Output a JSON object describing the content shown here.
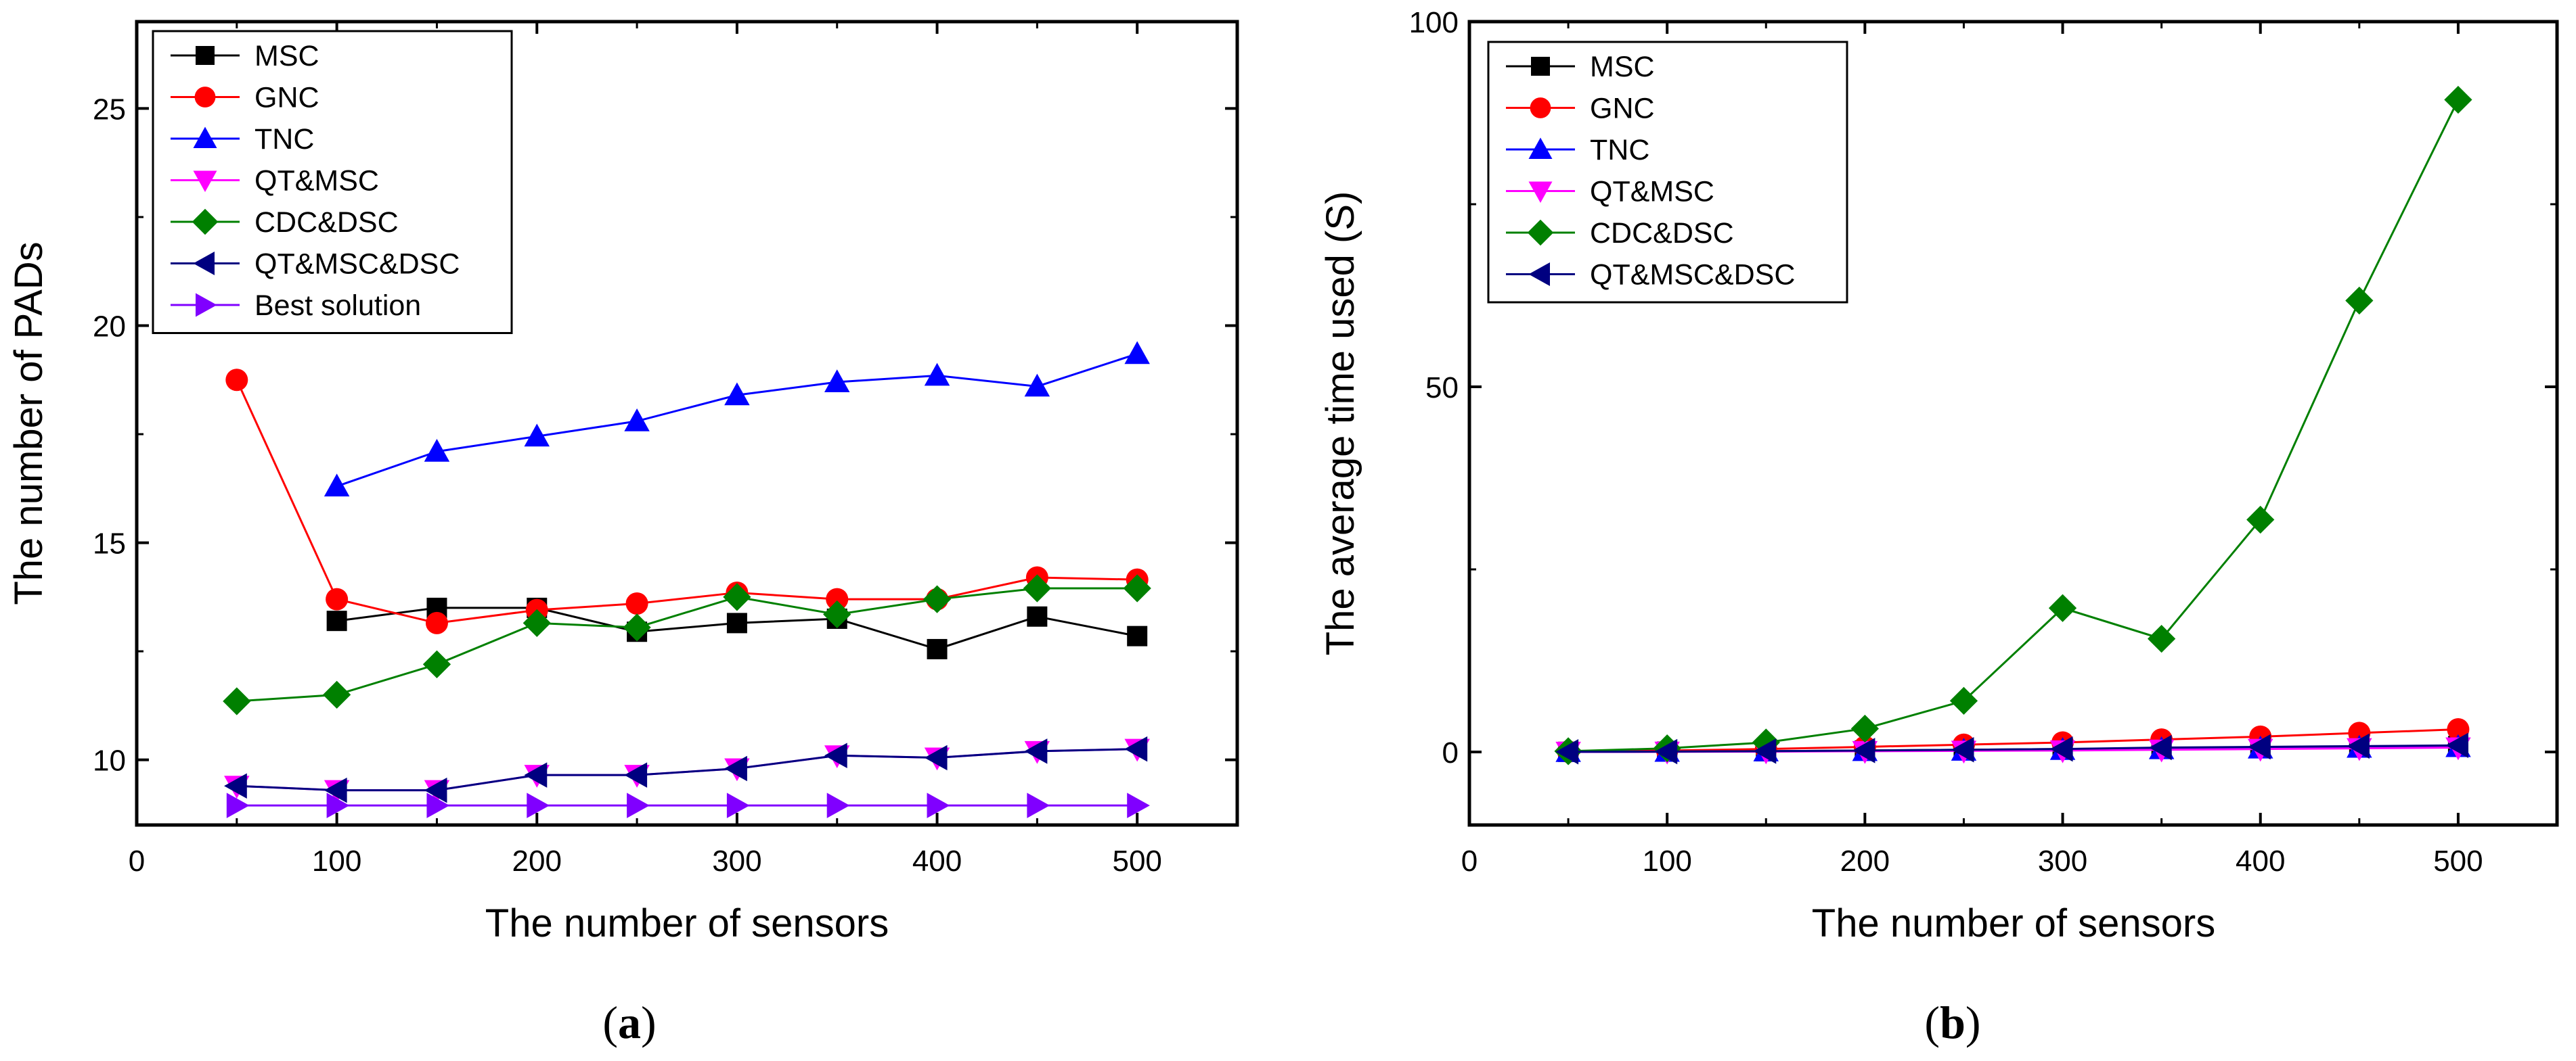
{
  "chart_data": [
    {
      "panel": "a",
      "caption_letter": "a",
      "type": "line",
      "xlabel": "The number of sensors",
      "ylabel": "The number of PADs",
      "xlim": [
        0,
        550
      ],
      "ylim": [
        8.5,
        27
      ],
      "xticks": [
        0,
        100,
        200,
        300,
        400,
        500
      ],
      "yticks": [
        10,
        15,
        20,
        25
      ],
      "grid": false,
      "legend_position": "top-left",
      "series": [
        {
          "name": "MSC",
          "color": "#000000",
          "marker": "square",
          "x": [
            100,
            150,
            200,
            250,
            300,
            350,
            400,
            450,
            500
          ],
          "y": [
            13.2,
            13.5,
            13.5,
            12.95,
            13.15,
            13.25,
            12.55,
            13.3,
            12.85
          ]
        },
        {
          "name": "GNC",
          "color": "#ff0000",
          "marker": "circle",
          "x": [
            50,
            100,
            150,
            200,
            250,
            300,
            350,
            400,
            450,
            500
          ],
          "y": [
            18.75,
            13.7,
            13.15,
            13.45,
            13.6,
            13.85,
            13.7,
            13.7,
            14.2,
            14.15
          ]
        },
        {
          "name": "TNC",
          "color": "#0000ff",
          "marker": "triangle-up",
          "x": [
            100,
            150,
            200,
            250,
            300,
            350,
            400,
            450,
            500
          ],
          "y": [
            16.3,
            17.1,
            17.45,
            17.8,
            18.4,
            18.7,
            18.85,
            18.6,
            19.35
          ]
        },
        {
          "name": "QT&MSC",
          "color": "#ff00ff",
          "marker": "triangle-down",
          "x": [
            50,
            100,
            150,
            200,
            250,
            300,
            350,
            400,
            450,
            500
          ],
          "y": [
            9.4,
            9.3,
            9.3,
            9.65,
            9.65,
            9.8,
            10.1,
            10.05,
            10.2,
            10.25
          ]
        },
        {
          "name": "CDC&DSC",
          "color": "#008000",
          "marker": "diamond",
          "x": [
            50,
            100,
            150,
            200,
            250,
            300,
            350,
            400,
            450,
            500
          ],
          "y": [
            11.35,
            11.5,
            12.2,
            13.15,
            13.05,
            13.75,
            13.35,
            13.7,
            13.95,
            13.95
          ]
        },
        {
          "name": "QT&MSC&DSC",
          "color": "#000080",
          "marker": "triangle-left",
          "x": [
            50,
            100,
            150,
            200,
            250,
            300,
            350,
            400,
            450,
            500
          ],
          "y": [
            9.4,
            9.3,
            9.3,
            9.65,
            9.65,
            9.8,
            10.1,
            10.05,
            10.2,
            10.25
          ]
        },
        {
          "name": "Best solution",
          "color": "#8000ff",
          "marker": "triangle-right",
          "x": [
            50,
            100,
            150,
            200,
            250,
            300,
            350,
            400,
            450,
            500
          ],
          "y": [
            8.95,
            8.95,
            8.95,
            8.95,
            8.95,
            8.95,
            8.95,
            8.95,
            8.95,
            8.95
          ]
        }
      ]
    },
    {
      "panel": "b",
      "caption_letter": "b",
      "type": "line",
      "xlabel": "The number of sensors",
      "ylabel": "The average time used (S)",
      "xlim": [
        0,
        550
      ],
      "ylim": [
        -10,
        100
      ],
      "xticks": [
        0,
        100,
        200,
        300,
        400,
        500
      ],
      "yticks": [
        0,
        50,
        100
      ],
      "grid": false,
      "legend_position": "top-left",
      "series": [
        {
          "name": "MSC",
          "color": "#000000",
          "marker": "square",
          "x": [
            50,
            100,
            150,
            200,
            250,
            300,
            350,
            400,
            450,
            500
          ],
          "y": [
            0.02,
            0.05,
            0.1,
            0.2,
            0.3,
            0.4,
            0.5,
            0.6,
            0.7,
            0.8
          ]
        },
        {
          "name": "GNC",
          "color": "#ff0000",
          "marker": "circle",
          "x": [
            50,
            100,
            150,
            200,
            250,
            300,
            350,
            400,
            450,
            500
          ],
          "y": [
            0.05,
            0.2,
            0.4,
            0.7,
            1.0,
            1.3,
            1.7,
            2.1,
            2.6,
            3.1
          ]
        },
        {
          "name": "TNC",
          "color": "#0000ff",
          "marker": "triangle-up",
          "x": [
            50,
            100,
            150,
            200,
            250,
            300,
            350,
            400,
            450,
            500
          ],
          "y": [
            0.02,
            0.05,
            0.1,
            0.15,
            0.2,
            0.3,
            0.4,
            0.5,
            0.6,
            0.7
          ]
        },
        {
          "name": "QT&MSC",
          "color": "#ff00ff",
          "marker": "triangle-down",
          "x": [
            50,
            100,
            150,
            200,
            250,
            300,
            350,
            400,
            450,
            500
          ],
          "y": [
            0.01,
            0.02,
            0.05,
            0.1,
            0.15,
            0.2,
            0.3,
            0.4,
            0.5,
            0.6
          ]
        },
        {
          "name": "CDC&DSC",
          "color": "#008000",
          "marker": "diamond",
          "x": [
            50,
            100,
            150,
            200,
            250,
            300,
            350,
            400,
            450,
            500
          ],
          "y": [
            0.1,
            0.5,
            1.3,
            3.2,
            7.0,
            19.7,
            15.5,
            31.8,
            61.8,
            89.3
          ]
        },
        {
          "name": "QT&MSC&DSC",
          "color": "#000080",
          "marker": "triangle-left",
          "x": [
            50,
            100,
            150,
            200,
            250,
            300,
            350,
            400,
            450,
            500
          ],
          "y": [
            0.02,
            0.05,
            0.1,
            0.2,
            0.3,
            0.4,
            0.6,
            0.7,
            0.8,
            0.9
          ]
        }
      ]
    }
  ]
}
